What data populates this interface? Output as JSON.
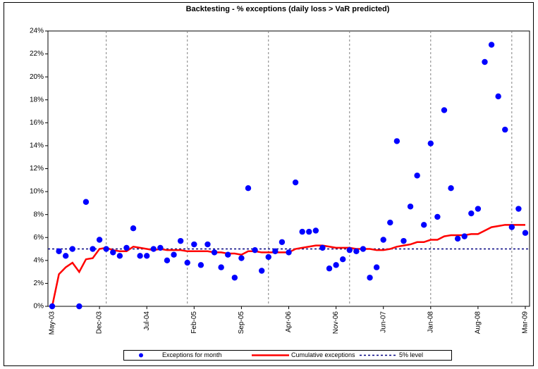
{
  "chart_data": {
    "type": "line",
    "title": "Backtesting - % exceptions (daily loss > VaR predicted)",
    "categories": [
      "May-03",
      null,
      null,
      null,
      null,
      null,
      null,
      "Dec-03",
      null,
      null,
      null,
      null,
      null,
      null,
      "Jul-04",
      null,
      null,
      null,
      null,
      null,
      null,
      "Feb-05",
      null,
      null,
      null,
      null,
      null,
      null,
      "Sep-05",
      null,
      null,
      null,
      null,
      null,
      null,
      "Apr-06",
      null,
      null,
      null,
      null,
      null,
      null,
      "Nov-06",
      null,
      null,
      null,
      null,
      null,
      null,
      "Jun-07",
      null,
      null,
      null,
      null,
      null,
      null,
      "Jan-08",
      null,
      null,
      null,
      null,
      null,
      null,
      "Aug-08",
      null,
      null,
      null,
      null,
      null,
      null,
      "Mar-09"
    ],
    "series": [
      {
        "name": "Exceptions for month",
        "color": "#0000ff",
        "style": "markers",
        "values": [
          0,
          4.8,
          4.4,
          5.0,
          0,
          9.1,
          5.0,
          5.8,
          5.0,
          4.7,
          4.4,
          5.1,
          6.8,
          4.4,
          4.4,
          5.0,
          5.1,
          4.0,
          4.5,
          5.7,
          3.8,
          5.4,
          3.6,
          5.4,
          4.7,
          3.4,
          4.5,
          2.5,
          4.2,
          10.3,
          4.9,
          3.1,
          4.3,
          4.8,
          5.6,
          4.7,
          10.8,
          6.5,
          6.5,
          6.6,
          5.1,
          3.3,
          3.6,
          4.1,
          4.9,
          4.8,
          5.0,
          2.5,
          3.4,
          5.8,
          7.3,
          14.4,
          5.7,
          8.7,
          11.4,
          7.1,
          14.2,
          7.8,
          17.1,
          10.3,
          5.9,
          6.1,
          8.1,
          8.5,
          21.3,
          22.8,
          18.3,
          15.4,
          6.9,
          8.5,
          6.4
        ]
      },
      {
        "name": "Cumulative exceptions",
        "color": "#ff0000",
        "style": "line",
        "values": [
          0,
          2.8,
          3.4,
          3.8,
          3.0,
          4.1,
          4.2,
          5.0,
          5.1,
          4.9,
          4.8,
          4.8,
          5.2,
          5.1,
          5.0,
          4.9,
          5.0,
          4.9,
          4.9,
          4.9,
          4.8,
          4.8,
          4.8,
          4.8,
          4.7,
          4.7,
          4.6,
          4.6,
          4.5,
          4.8,
          4.8,
          4.7,
          4.7,
          4.7,
          4.7,
          4.7,
          5.0,
          5.1,
          5.2,
          5.3,
          5.3,
          5.2,
          5.1,
          5.1,
          5.1,
          5.0,
          5.0,
          5.0,
          4.9,
          4.9,
          5.0,
          5.2,
          5.3,
          5.4,
          5.6,
          5.6,
          5.8,
          5.8,
          6.1,
          6.2,
          6.2,
          6.2,
          6.3,
          6.3,
          6.6,
          6.9,
          7.0,
          7.1,
          7.1,
          7.1,
          7.1
        ]
      }
    ],
    "reference_line": {
      "name": "5% level",
      "value": 5,
      "color": "#000080"
    },
    "ylim": [
      0,
      24
    ],
    "yticks": [
      {
        "value": 0,
        "label": "0%"
      },
      {
        "value": 2,
        "label": "2%"
      },
      {
        "value": 4,
        "label": "4%"
      },
      {
        "value": 6,
        "label": "6%"
      },
      {
        "value": 8,
        "label": "8%"
      },
      {
        "value": 10,
        "label": "10%"
      },
      {
        "value": 12,
        "label": "12%"
      },
      {
        "value": 14,
        "label": "14%"
      },
      {
        "value": 16,
        "label": "16%"
      },
      {
        "value": 18,
        "label": "18%"
      },
      {
        "value": 20,
        "label": "20%"
      },
      {
        "value": 22,
        "label": "22%"
      },
      {
        "value": 24,
        "label": "24%"
      }
    ],
    "legend": "bottom"
  }
}
